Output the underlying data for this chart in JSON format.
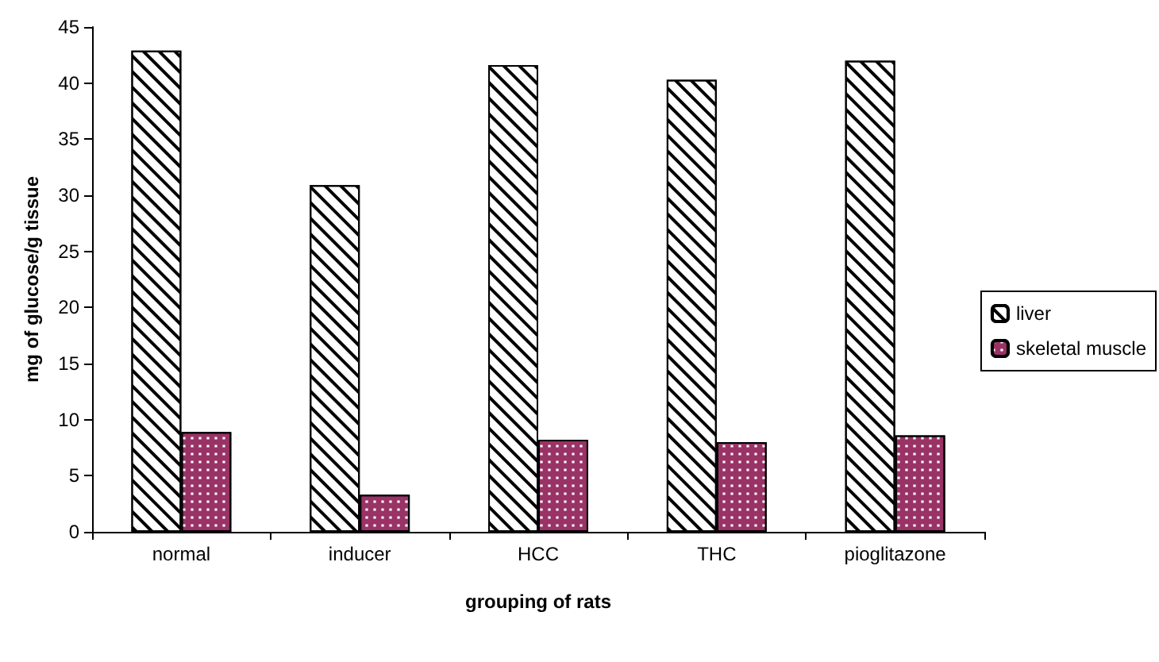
{
  "chart_data": {
    "type": "bar",
    "xlabel": "grouping of rats",
    "ylabel": "mg of glucose/g tissue",
    "categories": [
      "normal",
      "inducer",
      "HCC",
      "THC",
      "pioglitazone"
    ],
    "series": [
      {
        "name": "liver",
        "color": "#ffffff",
        "values": [
          42.9,
          30.9,
          41.6,
          40.3,
          42.0
        ]
      },
      {
        "name": "skeletal muscle",
        "color": "#993366",
        "values": [
          8.9,
          3.3,
          8.2,
          8.0,
          8.6
        ]
      }
    ],
    "ylim": [
      0,
      45
    ],
    "yticks": [
      0,
      5,
      10,
      15,
      20,
      25,
      30,
      35,
      40,
      45
    ],
    "grid": false,
    "legend": "right"
  }
}
